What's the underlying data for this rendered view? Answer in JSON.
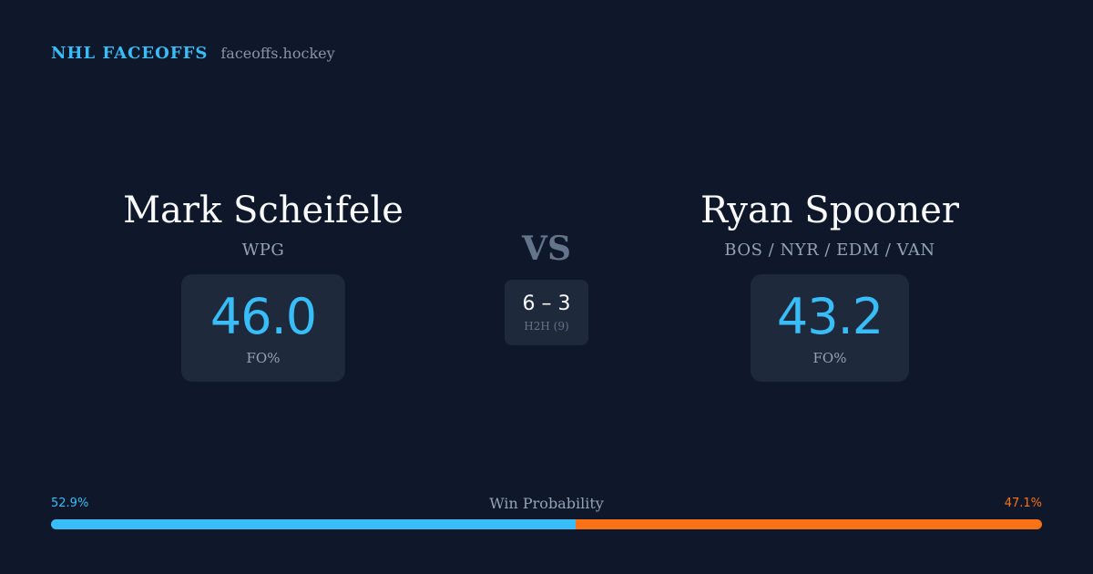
{
  "brand": {
    "title": "NHL FACEOFFS",
    "domain": "faceoffs.hockey"
  },
  "players": [
    {
      "name": "Mark Scheifele",
      "team": "WPG",
      "fo_pct": "46.0",
      "fo_label": "FO%"
    },
    {
      "name": "Ryan Spooner",
      "team": "BOS / NYR / EDM / VAN",
      "fo_pct": "43.2",
      "fo_label": "FO%"
    }
  ],
  "vs_label": "VS",
  "h2h": {
    "score": "6 – 3",
    "label": "H2H (9)"
  },
  "win_probability": {
    "title": "Win Probability",
    "left_text": "52.9%",
    "right_text": "47.1%",
    "left_value": 52.9,
    "right_value": 47.1
  },
  "colors": {
    "background": "#0f172a",
    "card": "#1e293b",
    "accent_blue": "#38bdf8",
    "accent_orange": "#f97316"
  }
}
